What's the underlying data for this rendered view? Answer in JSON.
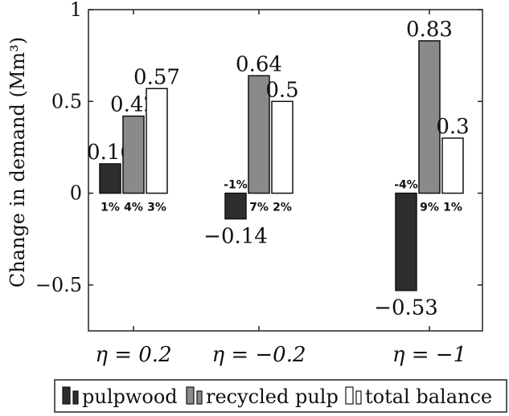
{
  "chart_data": {
    "type": "bar",
    "categories": [
      "η = 0.2",
      "η = −0.2",
      "η = −1"
    ],
    "series": [
      {
        "name": "pulpwood",
        "values": [
          0.16,
          -0.14,
          -0.53
        ],
        "value_labels": [
          "0.16",
          "−0.14",
          "−0.53"
        ],
        "pct_labels": [
          "1%",
          "-1%",
          "-4%"
        ],
        "color": "#2d2d2d",
        "stroke": "#111111"
      },
      {
        "name": "recycled pulp",
        "values": [
          0.42,
          0.64,
          0.83
        ],
        "value_labels": [
          "0.42",
          "0.64",
          "0.83"
        ],
        "pct_labels": [
          "4%",
          "7%",
          "9%"
        ],
        "color": "#8a8a8a",
        "stroke": "#111111"
      },
      {
        "name": "total balance",
        "values": [
          0.57,
          0.5,
          0.3
        ],
        "value_labels": [
          "0.57",
          "0.5",
          "0.3"
        ],
        "pct_labels": [
          "3%",
          "2%",
          "1%"
        ],
        "color": "#ffffff",
        "stroke": "#111111"
      }
    ],
    "ylabel": "Change in demand (Mm³)",
    "ylim": [
      -0.75,
      1.0
    ],
    "yticks": [
      1,
      0.5,
      0,
      -0.5
    ],
    "ytick_labels": [
      "1",
      "0.5",
      "0",
      "−0.5"
    ],
    "grid": false,
    "legend_position": "bottom"
  }
}
